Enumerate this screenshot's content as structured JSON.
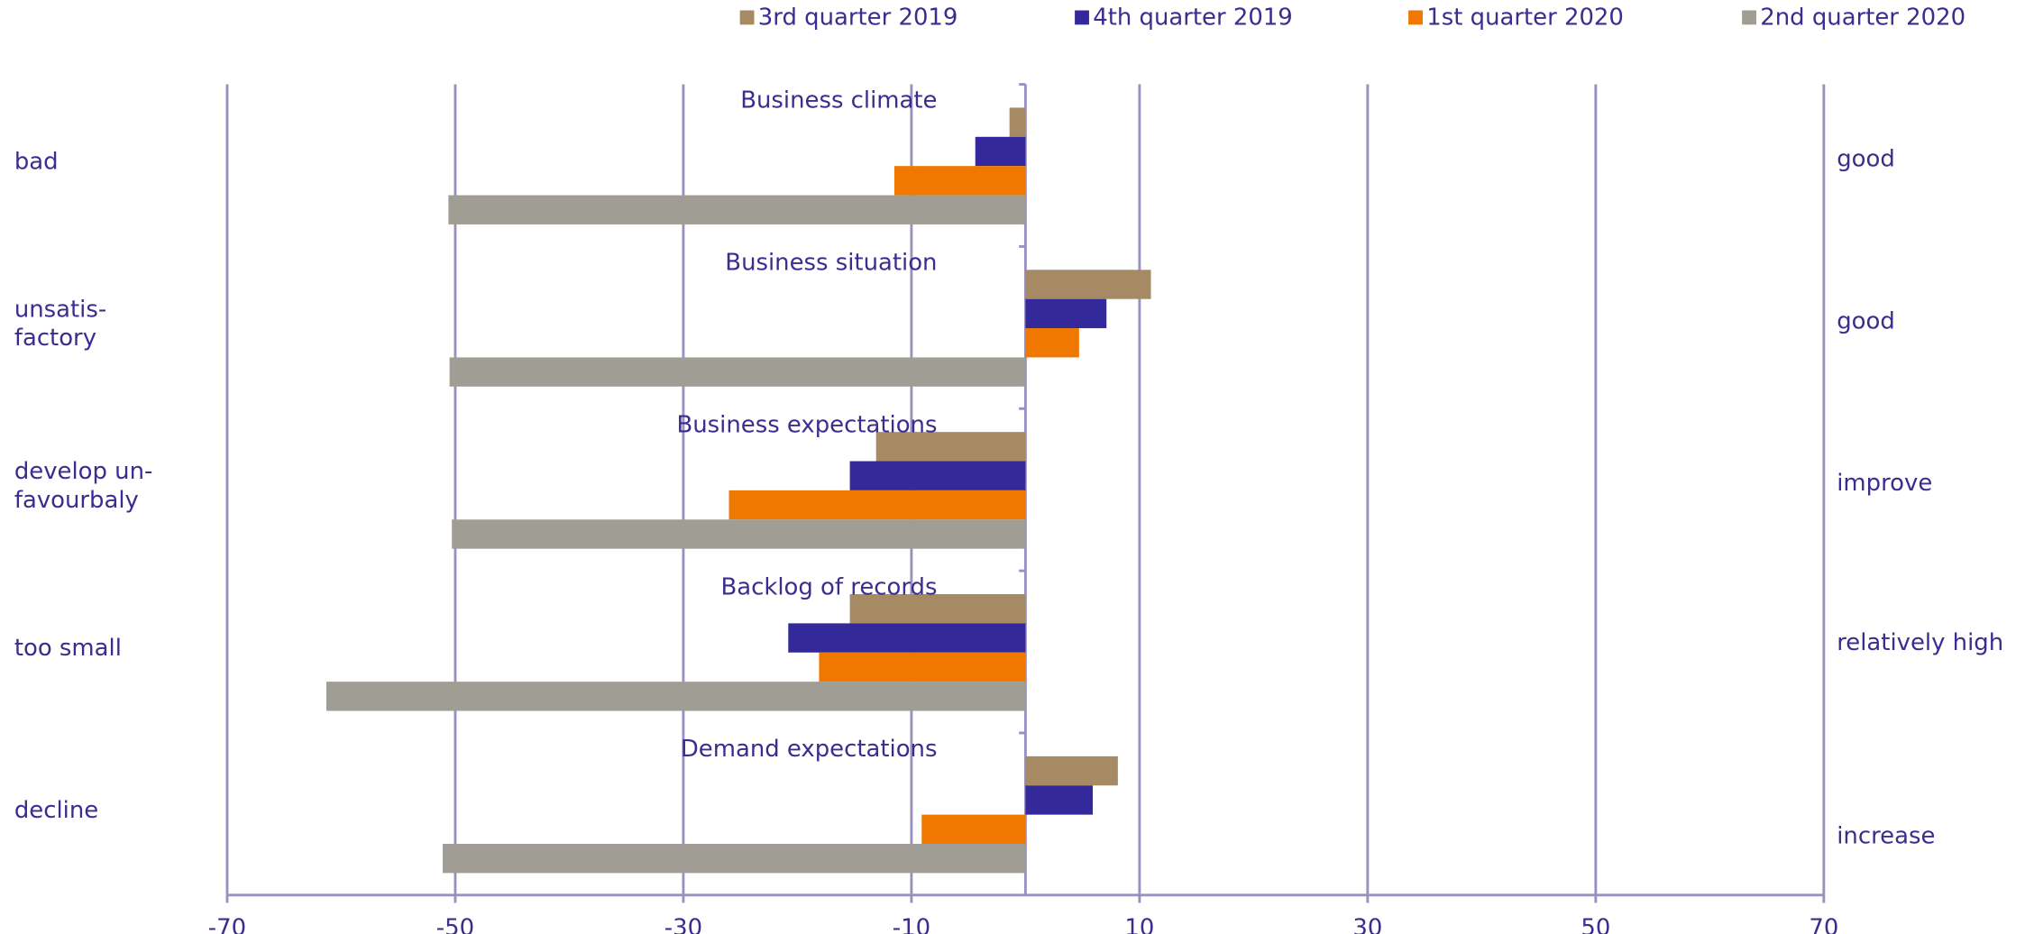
{
  "chart_data": {
    "type": "bar",
    "orientation": "horizontal",
    "categories": [
      "Business climate",
      "Business situation",
      "Business expectations",
      "Backlog of records",
      "Demand expectations"
    ],
    "left_labels": [
      [
        "bad"
      ],
      [
        "unsatis-",
        "factory"
      ],
      [
        "develop un-",
        "favourbaly"
      ],
      [
        "too small"
      ],
      [
        "decline"
      ]
    ],
    "right_labels": [
      "good",
      "good",
      "improve",
      "relatively high",
      "increase"
    ],
    "series": [
      {
        "name": "3rd quarter 2019",
        "color": "#a68a64",
        "values": [
          -1.4,
          11.0,
          -13.1,
          -15.4,
          8.1
        ]
      },
      {
        "name": "4th quarter 2019",
        "color": "#33299a",
        "values": [
          -4.4,
          7.1,
          -15.4,
          -20.8,
          5.9
        ]
      },
      {
        "name": "1st quarter 2020",
        "color": "#f07800",
        "values": [
          -11.5,
          4.7,
          -26.0,
          -18.1,
          -9.1
        ]
      },
      {
        "name": "2nd quarter 2020",
        "color": "#a09e94",
        "values": [
          -50.6,
          -50.5,
          -50.3,
          -61.3,
          -51.1
        ]
      }
    ],
    "xlim": [
      -70,
      70
    ],
    "xticks": [
      -70,
      -50,
      -30,
      -10,
      10,
      30,
      50,
      70
    ],
    "grid": true,
    "legend": "top"
  }
}
